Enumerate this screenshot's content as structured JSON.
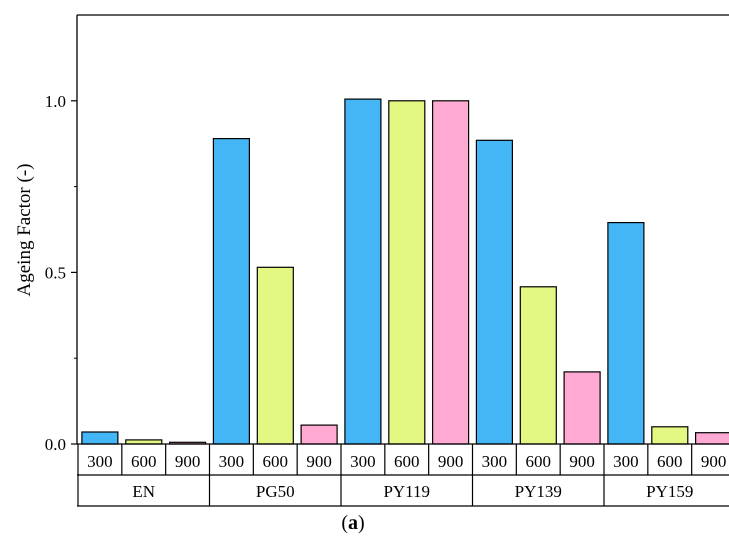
{
  "chart_data": {
    "type": "bar",
    "title": "",
    "xlabel": "",
    "ylabel": "Ageing Factor (-)",
    "ylim": [
      0.0,
      1.25
    ],
    "yticks": [
      "0.0",
      "0.5",
      "1.0"
    ],
    "ytick_values": [
      0.0,
      0.5,
      1.0
    ],
    "grid": false,
    "legend": "none",
    "groups": [
      "EN",
      "PG50",
      "PY119",
      "PY139",
      "PY159"
    ],
    "subcategories": [
      "300",
      "600",
      "900"
    ],
    "series": [
      {
        "key": "300",
        "color": "#45b6f5",
        "values": [
          0.035,
          0.89,
          1.005,
          0.885,
          0.645
        ]
      },
      {
        "key": "600",
        "color": "#e3f882",
        "values": [
          0.012,
          0.515,
          1.0,
          0.458,
          0.05
        ]
      },
      {
        "key": "900",
        "color": "#ffa9d3",
        "values": [
          0.005,
          0.055,
          1.0,
          0.21,
          0.033
        ]
      }
    ]
  },
  "caption": {
    "open": "(",
    "letter": "a",
    "close": ")"
  }
}
